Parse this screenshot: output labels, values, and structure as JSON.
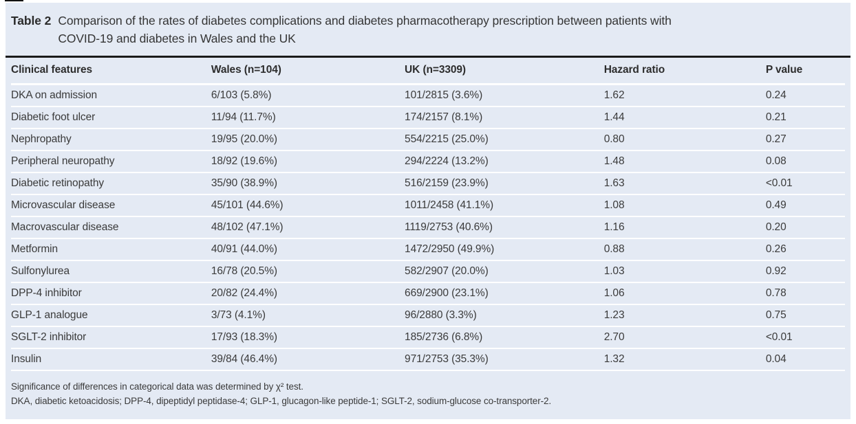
{
  "table": {
    "label": "Table 2",
    "caption_line1": "Comparison of the rates of diabetes complications and diabetes pharmacotherapy prescription between patients with",
    "caption_line2": "COVID-19 and diabetes in Wales and the UK",
    "columns": [
      "Clinical features",
      "Wales (n=104)",
      "UK (n=3309)",
      "Hazard ratio",
      "P value"
    ],
    "rows": [
      [
        "DKA on admission",
        "6/103 (5.8%)",
        "101/2815 (3.6%)",
        "1.62",
        "0.24"
      ],
      [
        "Diabetic foot ulcer",
        "11/94 (11.7%)",
        "174/2157 (8.1%)",
        "1.44",
        "0.21"
      ],
      [
        "Nephropathy",
        "19/95 (20.0%)",
        "554/2215 (25.0%)",
        "0.80",
        "0.27"
      ],
      [
        "Peripheral neuropathy",
        "18/92 (19.6%)",
        "294/2224 (13.2%)",
        "1.48",
        "0.08"
      ],
      [
        "Diabetic retinopathy",
        "35/90 (38.9%)",
        "516/2159 (23.9%)",
        "1.63",
        "<0.01"
      ],
      [
        "Microvascular disease",
        "45/101 (44.6%)",
        "1011/2458 (41.1%)",
        "1.08",
        "0.49"
      ],
      [
        "Macrovascular disease",
        "48/102 (47.1%)",
        "1119/2753 (40.6%)",
        "1.16",
        "0.20"
      ],
      [
        "Metformin",
        "40/91 (44.0%)",
        "1472/2950 (49.9%)",
        "0.88",
        "0.26"
      ],
      [
        "Sulfonylurea",
        "16/78 (20.5%)",
        "582/2907 (20.0%)",
        "1.03",
        "0.92"
      ],
      [
        "DPP-4 inhibitor",
        "20/82 (24.4%)",
        "669/2900 (23.1%)",
        "1.06",
        "0.78"
      ],
      [
        "GLP-1 analogue",
        "3/73 (4.1%)",
        "96/2880 (3.3%)",
        "1.23",
        "0.75"
      ],
      [
        "SGLT-2 inhibitor",
        "17/93 (18.3%)",
        "185/2736 (6.8%)",
        "2.70",
        "<0.01"
      ],
      [
        "Insulin",
        "39/84 (46.4%)",
        "971/2753 (35.3%)",
        "1.32",
        "0.04"
      ]
    ],
    "footnotes": [
      "Significance of differences in categorical data was determined by χ² test.",
      "DKA, diabetic ketoacidosis; DPP-4, dipeptidyl peptidase-4; GLP-1, glucagon-like peptide-1; SGLT-2, sodium-glucose co-transporter-2."
    ],
    "colors": {
      "panel_bg": "#e4eaf4",
      "text": "#3a3a3a",
      "rule": "#1a1a1a",
      "separator": "#ffffff"
    }
  }
}
